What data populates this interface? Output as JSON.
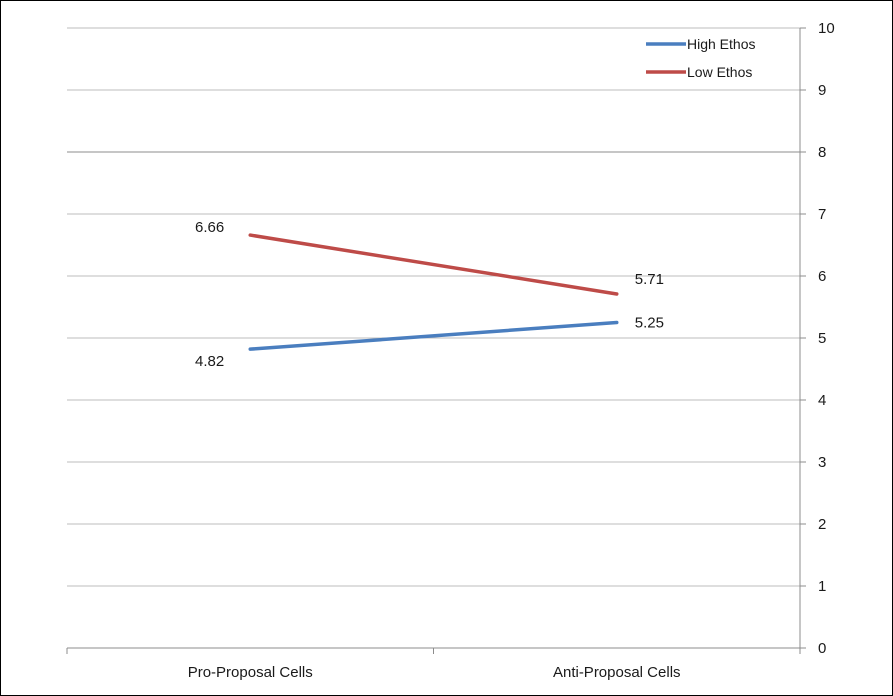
{
  "chart_data": {
    "type": "line",
    "categories": [
      "Pro-Proposal Cells",
      "Anti-Proposal Cells"
    ],
    "series": [
      {
        "name": "High Ethos",
        "values": [
          4.82,
          5.25
        ],
        "color": "#4a7ebf",
        "labels": [
          "4.82",
          "5.25"
        ]
      },
      {
        "name": "Low Ethos",
        "values": [
          6.66,
          5.71
        ],
        "color": "#be4b48",
        "labels": [
          "6.66",
          "5.71"
        ]
      }
    ],
    "ylim": [
      0,
      10
    ],
    "yticks": [
      0,
      1,
      2,
      3,
      4,
      5,
      6,
      7,
      8,
      9,
      10
    ],
    "y_axis_side": "right",
    "grid": true,
    "legend": "top-right",
    "title": "",
    "xlabel": "",
    "ylabel": ""
  }
}
